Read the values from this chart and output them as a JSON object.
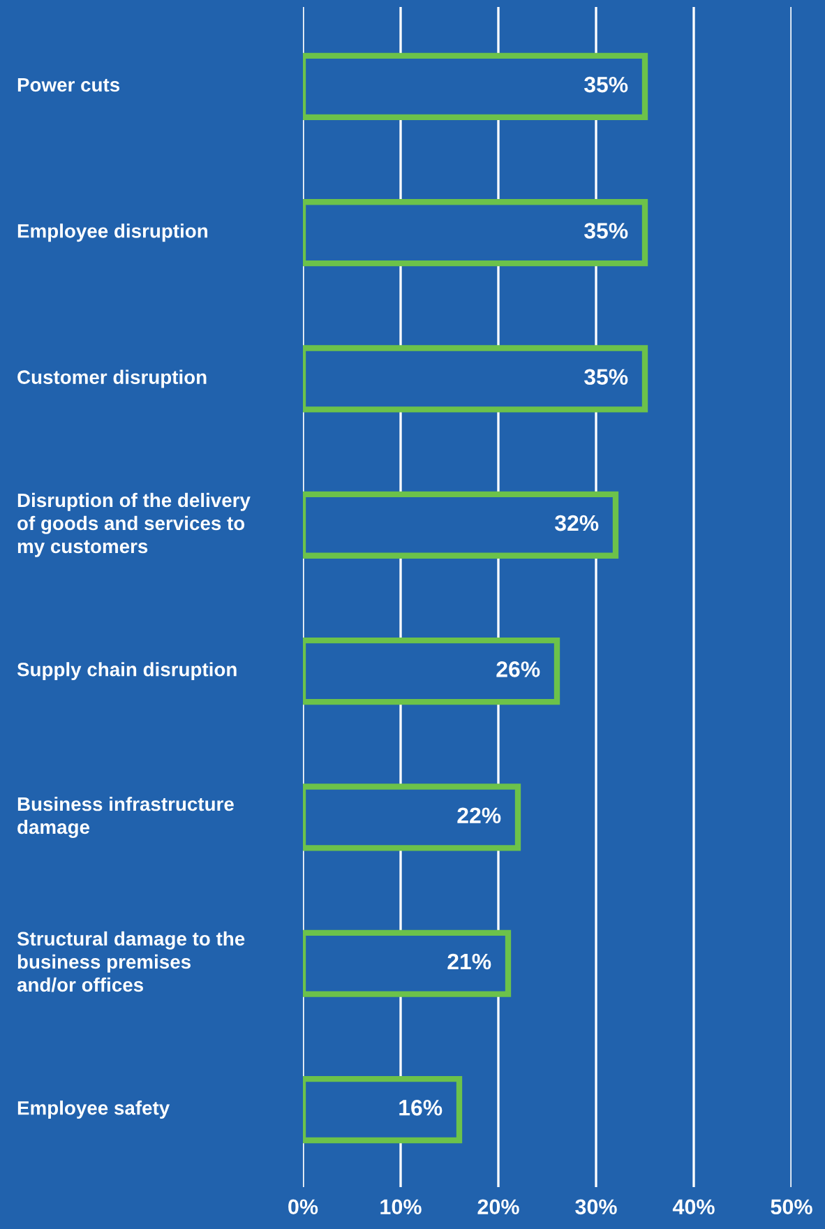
{
  "chart_data": {
    "type": "bar",
    "orientation": "horizontal",
    "categories": [
      "Power cuts",
      "Employee disruption",
      "Customer disruption",
      "Disruption of the delivery of goods and services to my customers",
      "Supply chain disruption",
      "Business infrastructure damage",
      "Structural damage to the business premises and/or offices",
      "Employee safety"
    ],
    "values": [
      35,
      35,
      35,
      32,
      26,
      22,
      21,
      16
    ],
    "value_labels": [
      "35%",
      "35%",
      "35%",
      "32%",
      "26%",
      "22%",
      "21%",
      "16%"
    ],
    "color": "#6cc24a",
    "xlim": [
      0,
      50
    ],
    "xticks": [
      {
        "value": 0,
        "label": "0%"
      },
      {
        "value": 10,
        "label": "10%"
      },
      {
        "value": 20,
        "label": "20%"
      },
      {
        "value": 30,
        "label": "30%"
      },
      {
        "value": 40,
        "label": "40%"
      },
      {
        "value": 50,
        "label": "50%"
      }
    ],
    "grid": "x"
  }
}
